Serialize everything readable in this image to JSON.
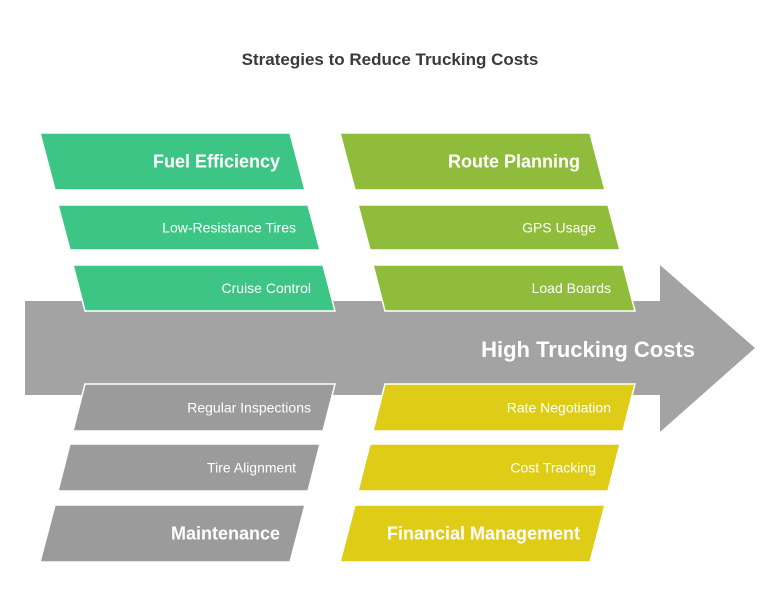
{
  "title": "Strategies to Reduce Trucking Costs",
  "effect": {
    "label": "High Trucking Costs",
    "color": "#A3A3A3"
  },
  "categories": [
    {
      "label": "Fuel Efficiency",
      "color": "#3DC585",
      "causes": [
        "Low-Resistance Tires",
        "Cruise Control"
      ]
    },
    {
      "label": "Route Planning",
      "color": "#8FBC3A",
      "causes": [
        "GPS Usage",
        "Load Boards"
      ]
    },
    {
      "label": "Maintenance",
      "color": "#9B9B9B",
      "causes": [
        "Tire Alignment",
        "Regular Inspections"
      ]
    },
    {
      "label": "Financial Management",
      "color": "#DFCC17",
      "causes": [
        "Cost Tracking",
        "Rate Negotiation"
      ]
    }
  ]
}
